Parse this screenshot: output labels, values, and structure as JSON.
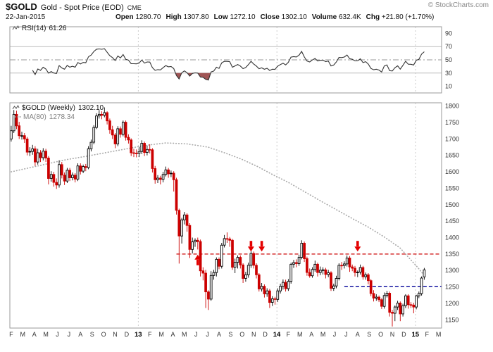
{
  "header": {
    "symbol": "$GOLD",
    "title": "Gold - Spot Price (EOD)",
    "exchange": "CME",
    "date": "22-Jan-2015",
    "copyright": "© StockCharts.com",
    "quote": [
      {
        "label": "Open",
        "value": "1280.70"
      },
      {
        "label": "High",
        "value": "1307.80"
      },
      {
        "label": "Low",
        "value": "1272.10"
      },
      {
        "label": "Close",
        "value": "1302.10"
      },
      {
        "label": "Volume",
        "value": "632.4K"
      },
      {
        "label": "Chg",
        "value": "+21.80 (+1.70%)"
      }
    ]
  },
  "rsi_panel": {
    "label": "RSI(14)",
    "value": "61.26"
  },
  "main_panel": {
    "label": "$GOLD (Weekly)",
    "value": "1302.10",
    "ma_label": "MA(80)",
    "ma_value": "1278.34"
  },
  "chart_data": {
    "type": "candlestick",
    "symbol": "$GOLD",
    "timeframe": "Weekly",
    "total_weeks": 162,
    "x_axis_months": [
      "F",
      "M",
      "A",
      "M",
      "J",
      "J",
      "A",
      "S",
      "O",
      "N",
      "D",
      "13",
      "F",
      "M",
      "A",
      "M",
      "J",
      "J",
      "A",
      "S",
      "O",
      "N",
      "D",
      "14",
      "F",
      "M",
      "A",
      "M",
      "J",
      "J",
      "A",
      "S",
      "O",
      "N",
      "D",
      "15",
      "F",
      "M"
    ],
    "year_boundaries_weeks": [
      47.7,
      99.7,
      151.7
    ],
    "price_axis": {
      "min": 1125,
      "max": 1810,
      "ticks": [
        1800,
        1750,
        1700,
        1650,
        1600,
        1550,
        1500,
        1450,
        1400,
        1350,
        1300,
        1250,
        1200,
        1150
      ]
    },
    "rsi": {
      "label": "RSI(14)",
      "period": 14,
      "last": 61.26,
      "axis_ticks": [
        90,
        70,
        50,
        30,
        10
      ],
      "overbought": 70,
      "midline": 50,
      "oversold": 30
    },
    "ma80": {
      "label": "MA(80)",
      "last": 1278.34,
      "keypoints": [
        [
          0,
          1600
        ],
        [
          10,
          1618
        ],
        [
          20,
          1636
        ],
        [
          30,
          1650
        ],
        [
          40,
          1665
        ],
        [
          50,
          1680
        ],
        [
          58,
          1688
        ],
        [
          66,
          1685
        ],
        [
          74,
          1675
        ],
        [
          80,
          1658
        ],
        [
          86,
          1640
        ],
        [
          92,
          1618
        ],
        [
          98,
          1592
        ],
        [
          104,
          1568
        ],
        [
          110,
          1540
        ],
        [
          116,
          1512
        ],
        [
          122,
          1485
        ],
        [
          128,
          1458
        ],
        [
          134,
          1432
        ],
        [
          140,
          1402
        ],
        [
          146,
          1368
        ],
        [
          150,
          1332
        ],
        [
          153,
          1305
        ],
        [
          155,
          1285
        ]
      ]
    },
    "candles_ohlc": [
      [
        1700,
        1740,
        1692,
        1725
      ],
      [
        1725,
        1788,
        1718,
        1775
      ],
      [
        1775,
        1786,
        1730,
        1740
      ],
      [
        1740,
        1752,
        1700,
        1710
      ],
      [
        1710,
        1722,
        1698,
        1710
      ],
      [
        1710,
        1718,
        1688,
        1700
      ],
      [
        1700,
        1706,
        1650,
        1660
      ],
      [
        1660,
        1675,
        1648,
        1662
      ],
      [
        1662,
        1682,
        1652,
        1670
      ],
      [
        1670,
        1678,
        1618,
        1630
      ],
      [
        1630,
        1670,
        1622,
        1658
      ],
      [
        1658,
        1666,
        1630,
        1643
      ],
      [
        1643,
        1672,
        1635,
        1663
      ],
      [
        1663,
        1670,
        1630,
        1642
      ],
      [
        1642,
        1648,
        1562,
        1580
      ],
      [
        1580,
        1602,
        1570,
        1592
      ],
      [
        1592,
        1600,
        1555,
        1568
      ],
      [
        1568,
        1580,
        1548,
        1560
      ],
      [
        1560,
        1635,
        1552,
        1622
      ],
      [
        1622,
        1630,
        1580,
        1590
      ],
      [
        1590,
        1598,
        1560,
        1572
      ],
      [
        1572,
        1612,
        1566,
        1605
      ],
      [
        1605,
        1612,
        1572,
        1582
      ],
      [
        1582,
        1598,
        1574,
        1590
      ],
      [
        1590,
        1596,
        1568,
        1578
      ],
      [
        1578,
        1626,
        1572,
        1618
      ],
      [
        1618,
        1626,
        1592,
        1602
      ],
      [
        1602,
        1622,
        1596,
        1616
      ],
      [
        1616,
        1624,
        1602,
        1613
      ],
      [
        1613,
        1678,
        1608,
        1670
      ],
      [
        1670,
        1698,
        1662,
        1690
      ],
      [
        1690,
        1742,
        1684,
        1735
      ],
      [
        1735,
        1778,
        1730,
        1770
      ],
      [
        1770,
        1788,
        1762,
        1775
      ],
      [
        1775,
        1784,
        1760,
        1772
      ],
      [
        1772,
        1796,
        1766,
        1780
      ],
      [
        1780,
        1784,
        1744,
        1755
      ],
      [
        1755,
        1762,
        1716,
        1728
      ],
      [
        1728,
        1740,
        1700,
        1712
      ],
      [
        1712,
        1718,
        1672,
        1685
      ],
      [
        1685,
        1739,
        1678,
        1731
      ],
      [
        1731,
        1738,
        1704,
        1714
      ],
      [
        1714,
        1756,
        1708,
        1751
      ],
      [
        1751,
        1756,
        1695,
        1705
      ],
      [
        1705,
        1714,
        1686,
        1697
      ],
      [
        1697,
        1702,
        1648,
        1658
      ],
      [
        1658,
        1670,
        1645,
        1657
      ],
      [
        1657,
        1668,
        1644,
        1656
      ],
      [
        1656,
        1676,
        1645,
        1662
      ],
      [
        1662,
        1696,
        1654,
        1687
      ],
      [
        1687,
        1692,
        1648,
        1659
      ],
      [
        1659,
        1680,
        1650,
        1668
      ],
      [
        1668,
        1684,
        1656,
        1667
      ],
      [
        1667,
        1672,
        1598,
        1610
      ],
      [
        1610,
        1618,
        1564,
        1576
      ],
      [
        1576,
        1590,
        1566,
        1581
      ],
      [
        1581,
        1588,
        1562,
        1577
      ],
      [
        1577,
        1600,
        1568,
        1592
      ],
      [
        1592,
        1616,
        1586,
        1606
      ],
      [
        1606,
        1612,
        1582,
        1594
      ],
      [
        1594,
        1604,
        1584,
        1596
      ],
      [
        1596,
        1602,
        1540,
        1576
      ],
      [
        1576,
        1582,
        1470,
        1483
      ],
      [
        1483,
        1488,
        1321,
        1405
      ],
      [
        1405,
        1460,
        1382,
        1454
      ],
      [
        1454,
        1478,
        1440,
        1469
      ],
      [
        1469,
        1474,
        1418,
        1437
      ],
      [
        1437,
        1444,
        1338,
        1364
      ],
      [
        1364,
        1400,
        1352,
        1387
      ],
      [
        1387,
        1398,
        1372,
        1392
      ],
      [
        1392,
        1400,
        1364,
        1388
      ],
      [
        1388,
        1394,
        1282,
        1299
      ],
      [
        1299,
        1310,
        1270,
        1292
      ],
      [
        1292,
        1302,
        1186,
        1235
      ],
      [
        1235,
        1240,
        1180,
        1213
      ],
      [
        1213,
        1298,
        1208,
        1285
      ],
      [
        1285,
        1302,
        1272,
        1294
      ],
      [
        1294,
        1340,
        1282,
        1334
      ],
      [
        1334,
        1340,
        1304,
        1313
      ],
      [
        1313,
        1384,
        1306,
        1377
      ],
      [
        1377,
        1408,
        1370,
        1397
      ],
      [
        1397,
        1416,
        1384,
        1396
      ],
      [
        1396,
        1402,
        1372,
        1392
      ],
      [
        1392,
        1396,
        1302,
        1310
      ],
      [
        1310,
        1336,
        1292,
        1325
      ],
      [
        1325,
        1346,
        1306,
        1340
      ],
      [
        1340,
        1346,
        1306,
        1317
      ],
      [
        1317,
        1322,
        1262,
        1276
      ],
      [
        1276,
        1296,
        1266,
        1287
      ],
      [
        1287,
        1324,
        1278,
        1316
      ],
      [
        1316,
        1362,
        1308,
        1352
      ],
      [
        1352,
        1358,
        1306,
        1316
      ],
      [
        1316,
        1322,
        1276,
        1287
      ],
      [
        1287,
        1292,
        1236,
        1244
      ],
      [
        1244,
        1262,
        1236,
        1252
      ],
      [
        1252,
        1258,
        1218,
        1229
      ],
      [
        1229,
        1246,
        1220,
        1238
      ],
      [
        1238,
        1244,
        1186,
        1203
      ],
      [
        1203,
        1222,
        1192,
        1214
      ],
      [
        1214,
        1220,
        1196,
        1212
      ],
      [
        1212,
        1246,
        1204,
        1238
      ],
      [
        1238,
        1260,
        1230,
        1252
      ],
      [
        1252,
        1273,
        1242,
        1264
      ],
      [
        1264,
        1272,
        1236,
        1245
      ],
      [
        1245,
        1274,
        1238,
        1267
      ],
      [
        1267,
        1324,
        1260,
        1319
      ],
      [
        1319,
        1332,
        1308,
        1324
      ],
      [
        1324,
        1334,
        1310,
        1321
      ],
      [
        1321,
        1348,
        1314,
        1340
      ],
      [
        1340,
        1392,
        1334,
        1383
      ],
      [
        1383,
        1388,
        1326,
        1336
      ],
      [
        1336,
        1342,
        1284,
        1294
      ],
      [
        1294,
        1306,
        1278,
        1284
      ],
      [
        1284,
        1310,
        1278,
        1303
      ],
      [
        1303,
        1330,
        1296,
        1319
      ],
      [
        1319,
        1324,
        1282,
        1294
      ],
      [
        1294,
        1312,
        1286,
        1301
      ],
      [
        1301,
        1310,
        1288,
        1302
      ],
      [
        1302,
        1308,
        1276,
        1288
      ],
      [
        1288,
        1302,
        1280,
        1293
      ],
      [
        1293,
        1298,
        1238,
        1246
      ],
      [
        1246,
        1260,
        1238,
        1253
      ],
      [
        1253,
        1284,
        1246,
        1276
      ],
      [
        1276,
        1322,
        1270,
        1316
      ],
      [
        1316,
        1326,
        1302,
        1315
      ],
      [
        1315,
        1328,
        1306,
        1320
      ],
      [
        1320,
        1346,
        1312,
        1338
      ],
      [
        1338,
        1344,
        1296,
        1311
      ],
      [
        1311,
        1318,
        1298,
        1307
      ],
      [
        1307,
        1314,
        1282,
        1294
      ],
      [
        1294,
        1300,
        1280,
        1295
      ],
      [
        1295,
        1318,
        1288,
        1309
      ],
      [
        1309,
        1314,
        1272,
        1281
      ],
      [
        1281,
        1294,
        1272,
        1287
      ],
      [
        1287,
        1292,
        1258,
        1269
      ],
      [
        1269,
        1274,
        1222,
        1230
      ],
      [
        1230,
        1240,
        1206,
        1216
      ],
      [
        1216,
        1228,
        1208,
        1219
      ],
      [
        1219,
        1224,
        1204,
        1211
      ],
      [
        1211,
        1216,
        1183,
        1191
      ],
      [
        1191,
        1233,
        1184,
        1224
      ],
      [
        1224,
        1238,
        1218,
        1231
      ],
      [
        1231,
        1236,
        1160,
        1173
      ],
      [
        1173,
        1180,
        1130,
        1170
      ],
      [
        1170,
        1194,
        1146,
        1189
      ],
      [
        1189,
        1208,
        1180,
        1201
      ],
      [
        1201,
        1206,
        1146,
        1168
      ],
      [
        1168,
        1199,
        1160,
        1193
      ],
      [
        1193,
        1228,
        1186,
        1223
      ],
      [
        1223,
        1228,
        1184,
        1196
      ],
      [
        1196,
        1204,
        1186,
        1195
      ],
      [
        1195,
        1202,
        1170,
        1189
      ],
      [
        1189,
        1226,
        1182,
        1223
      ],
      [
        1223,
        1236,
        1216,
        1230
      ],
      [
        1230,
        1282,
        1224,
        1277
      ],
      [
        1280.7,
        1307.8,
        1272.1,
        1302.1
      ]
    ],
    "annotations": {
      "resistance_line": {
        "value": 1350,
        "from_week": 62,
        "style": "dashed",
        "color": "#cc0000"
      },
      "support_line": {
        "value": 1252,
        "from_week": 125,
        "style": "dashed",
        "color": "#000099"
      },
      "arrows": [
        {
          "week": 70,
          "price": 1348,
          "direction": "up"
        },
        {
          "week": 90,
          "price": 1358,
          "direction": "down"
        },
        {
          "week": 94,
          "price": 1358,
          "direction": "down"
        },
        {
          "week": 130,
          "price": 1358,
          "direction": "down"
        }
      ]
    },
    "colors": {
      "up": "#000000",
      "down": "#cc0000",
      "ma": "#aaaaaa",
      "rsi": "#333333",
      "rsi_fill": "#a05555",
      "grid": "#cccccc",
      "axis_text": "#333333",
      "arrow": "#e40000",
      "border": "#999999"
    }
  }
}
